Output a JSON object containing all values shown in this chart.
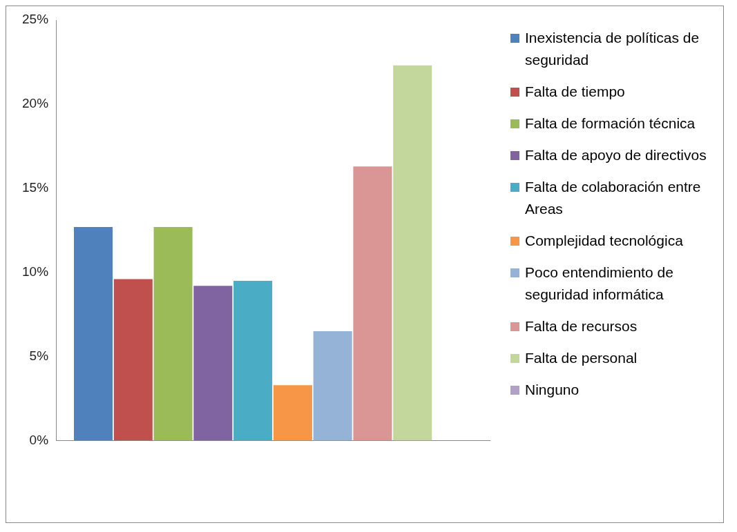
{
  "chart_data": {
    "type": "bar",
    "categories": [
      null
    ],
    "series": [
      {
        "name": "Inexistencia de políticas de seguridad",
        "color": "#4f81bd",
        "values": [
          12.7
        ]
      },
      {
        "name": "Falta de tiempo",
        "color": "#c0504d",
        "values": [
          9.6
        ]
      },
      {
        "name": "Falta de formación técnica",
        "color": "#9bbb59",
        "values": [
          12.7
        ]
      },
      {
        "name": "Falta de apoyo de directivos",
        "color": "#8064a2",
        "values": [
          9.2
        ]
      },
      {
        "name": "Falta de colaboración entre Areas",
        "color": "#4bacc6",
        "values": [
          9.5
        ]
      },
      {
        "name": "Complejidad tecnológica",
        "color": "#f79646",
        "values": [
          3.3
        ]
      },
      {
        "name": "Poco entendimiento de seguridad informática",
        "color": "#95b3d7",
        "values": [
          6.5
        ]
      },
      {
        "name": "Falta de recursos",
        "color": "#d99694",
        "values": [
          16.3
        ]
      },
      {
        "name": "Falta de personal",
        "color": "#c3d69b",
        "values": [
          22.3
        ]
      },
      {
        "name": "Ninguno",
        "color": "#b2a1c7",
        "values": [
          0
        ]
      }
    ],
    "ylim": [
      0,
      25
    ],
    "yticks": [
      {
        "value": 0,
        "label": "0%"
      },
      {
        "value": 5,
        "label": "5%"
      },
      {
        "value": 10,
        "label": "10%"
      },
      {
        "value": 15,
        "label": "15%"
      },
      {
        "value": 20,
        "label": "20%"
      },
      {
        "value": 25,
        "label": "25%"
      }
    ],
    "grid": false,
    "legend": "right"
  }
}
